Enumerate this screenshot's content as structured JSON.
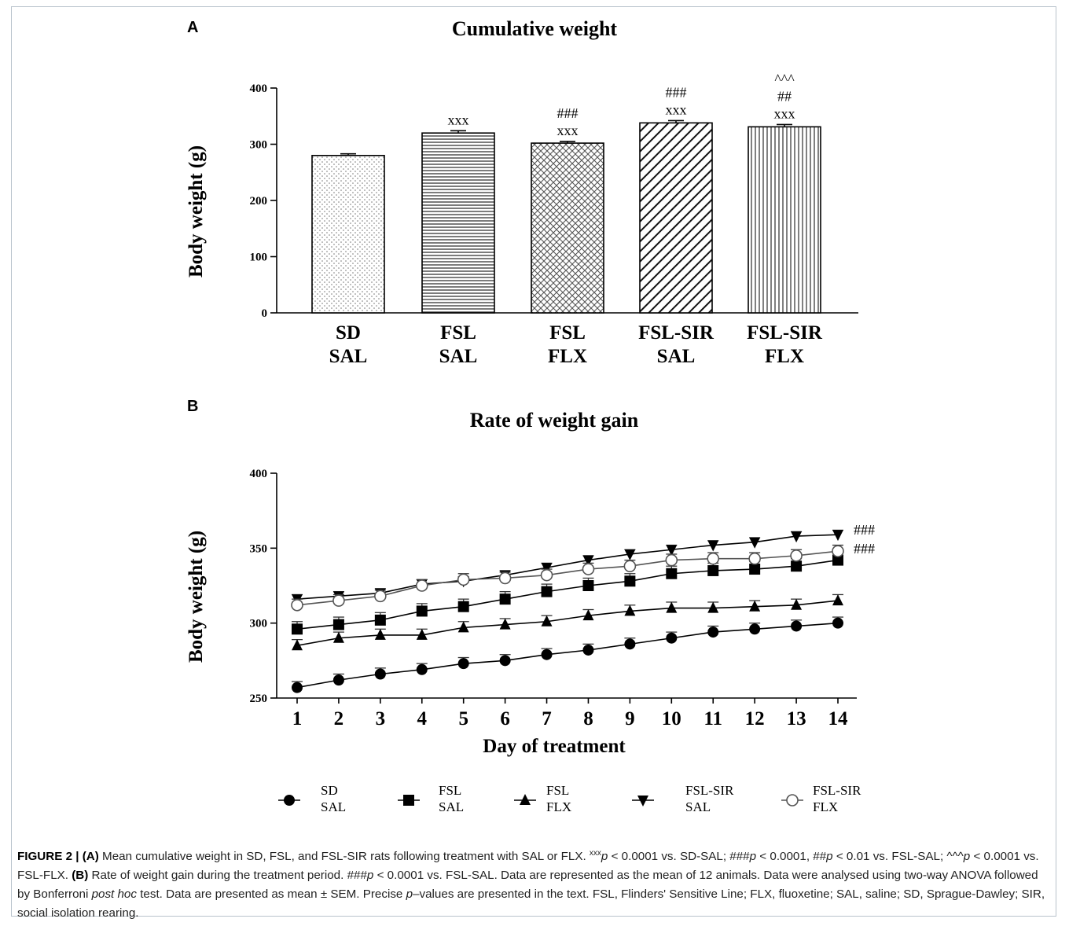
{
  "panel_a": {
    "letter": "A"
  },
  "panel_b": {
    "letter": "B"
  },
  "chart_data": [
    {
      "type": "bar",
      "title": "Cumulative weight",
      "ylabel": "Body weight (g)",
      "xlabel": "",
      "ylim": [
        0,
        400
      ],
      "yticks": [
        0,
        100,
        200,
        300,
        400
      ],
      "categories": [
        {
          "line1": "SD",
          "line2": "SAL"
        },
        {
          "line1": "FSL",
          "line2": "SAL"
        },
        {
          "line1": "FSL",
          "line2": "FLX"
        },
        {
          "line1": "FSL-SIR",
          "line2": "SAL"
        },
        {
          "line1": "FSL-SIR",
          "line2": "FLX"
        }
      ],
      "values": [
        280,
        320,
        302,
        338,
        331
      ],
      "sem": [
        3,
        4,
        3,
        4,
        4
      ],
      "patterns": [
        "dots",
        "horizontal-lines",
        "crosshatch",
        "diagonal-lines",
        "vertical-lines"
      ],
      "annotations": [
        [],
        [
          "xxx"
        ],
        [
          "###",
          "xxx"
        ],
        [
          "###",
          "xxx"
        ],
        [
          "^^^",
          "##",
          "xxx"
        ]
      ],
      "grid": false
    },
    {
      "type": "line",
      "title": "Rate of weight gain",
      "xlabel": "Day of treatment",
      "ylabel": "Body weight (g)",
      "ylim": [
        250,
        400
      ],
      "yticks": [
        250,
        300,
        350,
        400
      ],
      "x": [
        1,
        2,
        3,
        4,
        5,
        6,
        7,
        8,
        9,
        10,
        11,
        12,
        13,
        14
      ],
      "grid": false,
      "legend_position": "bottom",
      "series": [
        {
          "name_line1": "SD",
          "name_line2": "SAL",
          "marker": "circle-filled",
          "values": [
            257,
            262,
            266,
            269,
            273,
            275,
            279,
            282,
            286,
            290,
            294,
            296,
            298,
            300
          ],
          "sem": [
            4,
            4,
            4,
            4,
            4,
            4,
            4,
            4,
            4,
            4,
            4,
            4,
            4,
            4
          ]
        },
        {
          "name_line1": "FSL",
          "name_line2": "SAL",
          "marker": "square-filled",
          "values": [
            296,
            299,
            302,
            308,
            311,
            316,
            321,
            325,
            328,
            333,
            335,
            336,
            338,
            342
          ],
          "sem": [
            5,
            5,
            5,
            5,
            5,
            5,
            5,
            5,
            5,
            5,
            5,
            5,
            5,
            5
          ]
        },
        {
          "name_line1": "FSL",
          "name_line2": "FLX",
          "marker": "triangle-up-filled",
          "values": [
            285,
            290,
            292,
            292,
            297,
            299,
            301,
            305,
            308,
            310,
            310,
            311,
            312,
            315
          ],
          "sem": [
            4,
            4,
            4,
            4,
            4,
            4,
            4,
            4,
            4,
            4,
            4,
            4,
            4,
            4
          ]
        },
        {
          "name_line1": "FSL-SIR",
          "name_line2": "SAL",
          "marker": "triangle-down-filled",
          "values": [
            316,
            318,
            320,
            326,
            328,
            332,
            337,
            342,
            346,
            349,
            352,
            354,
            358,
            359
          ],
          "sem": [
            3,
            3,
            3,
            3,
            3,
            3,
            3,
            3,
            3,
            3,
            3,
            3,
            3,
            3
          ]
        },
        {
          "name_line1": "FSL-SIR",
          "name_line2": "FLX",
          "marker": "circle-open",
          "values": [
            312,
            315,
            318,
            325,
            329,
            330,
            332,
            336,
            338,
            342,
            343,
            343,
            345,
            348
          ],
          "sem": [
            4,
            4,
            4,
            4,
            4,
            4,
            4,
            4,
            4,
            4,
            4,
            4,
            4,
            4
          ]
        }
      ],
      "end_annotations": [
        "###",
        "###"
      ]
    }
  ],
  "caption": {
    "lead": "FIGURE 2 | ",
    "p1": "(A)",
    "t1": " Mean cumulative weight in SD, FSL, and FSL-SIR rats following treatment with SAL or FLX. ",
    "t2": "xxx",
    "t3": "p",
    "t4": " < 0.0001 vs. SD-SAL; ###",
    "t5": "p",
    "t6": " < 0.0001, ##",
    "t7": "p",
    "t8": " < 0.01 vs. FSL-SAL; ^^^",
    "t9": "p",
    "t10": " < 0.0001 vs. FSL-FLX. ",
    "p2": "(B)",
    "t11": " Rate of weight gain during the treatment period. ###",
    "t12": "p",
    "t13": " < 0.0001 vs. FSL-SAL. Data are represented as the mean of 12 animals. Data were analysed using two-way ANOVA followed by Bonferroni ",
    "t14": "post hoc",
    "t15": " test. Data are presented as mean ± SEM. Precise ",
    "t16": "p",
    "t17": "–values are presented in the text. FSL, Flinders' Sensitive Line; FLX, fluoxetine; SAL, saline; SD, Sprague-Dawley; SIR, social isolation rearing."
  }
}
